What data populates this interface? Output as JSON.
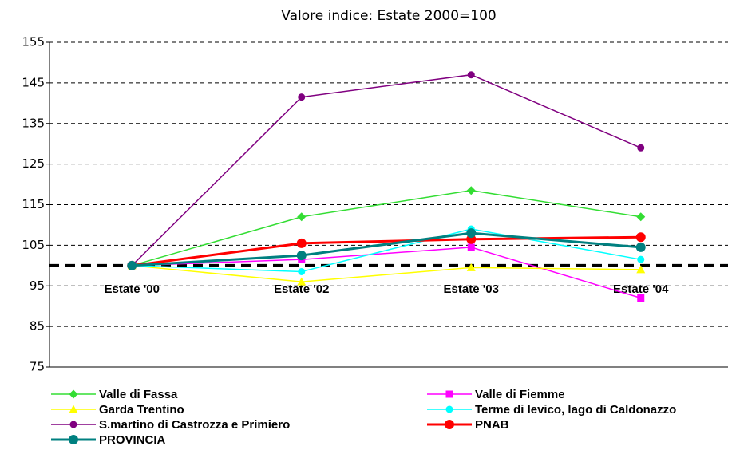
{
  "chart_data": {
    "type": "line",
    "title": "Valore indice: Estate 2000=100",
    "categories": [
      "Estate '00",
      "Estate '02",
      "Estate '03",
      "Estate '04"
    ],
    "ylim": [
      75,
      155
    ],
    "yticks": [
      75,
      85,
      95,
      105,
      115,
      125,
      135,
      145,
      155
    ],
    "grid": true,
    "reference_line": 100,
    "series": [
      {
        "name": "Valle di Fassa",
        "color": "#33dd33",
        "marker": "diamond",
        "thick": false,
        "values": [
          100,
          112,
          118.5,
          112
        ]
      },
      {
        "name": "Valle di Fiemme",
        "color": "#ff00ff",
        "marker": "square",
        "thick": false,
        "values": [
          100,
          101.5,
          104.5,
          92
        ]
      },
      {
        "name": "Garda Trentino",
        "color": "#ffff00",
        "marker": "triangle",
        "thick": false,
        "values": [
          100,
          96,
          99.5,
          99
        ]
      },
      {
        "name": "Terme di levico, lago di Caldonazzo",
        "color": "#00ffff",
        "marker": "circle",
        "thick": false,
        "values": [
          100,
          98.5,
          109,
          101.5
        ]
      },
      {
        "name": "S.martino di Castrozza e Primiero",
        "color": "#800080",
        "marker": "circle",
        "thick": false,
        "values": [
          100,
          141.5,
          147,
          129
        ]
      },
      {
        "name": "PNAB",
        "color": "#ff0000",
        "marker": "circle",
        "thick": true,
        "values": [
          100,
          105.5,
          106.5,
          107
        ]
      },
      {
        "name": "PROVINCIA",
        "color": "#008080",
        "marker": "circle",
        "thick": true,
        "values": [
          100,
          102.5,
          108,
          104.5
        ]
      }
    ]
  }
}
